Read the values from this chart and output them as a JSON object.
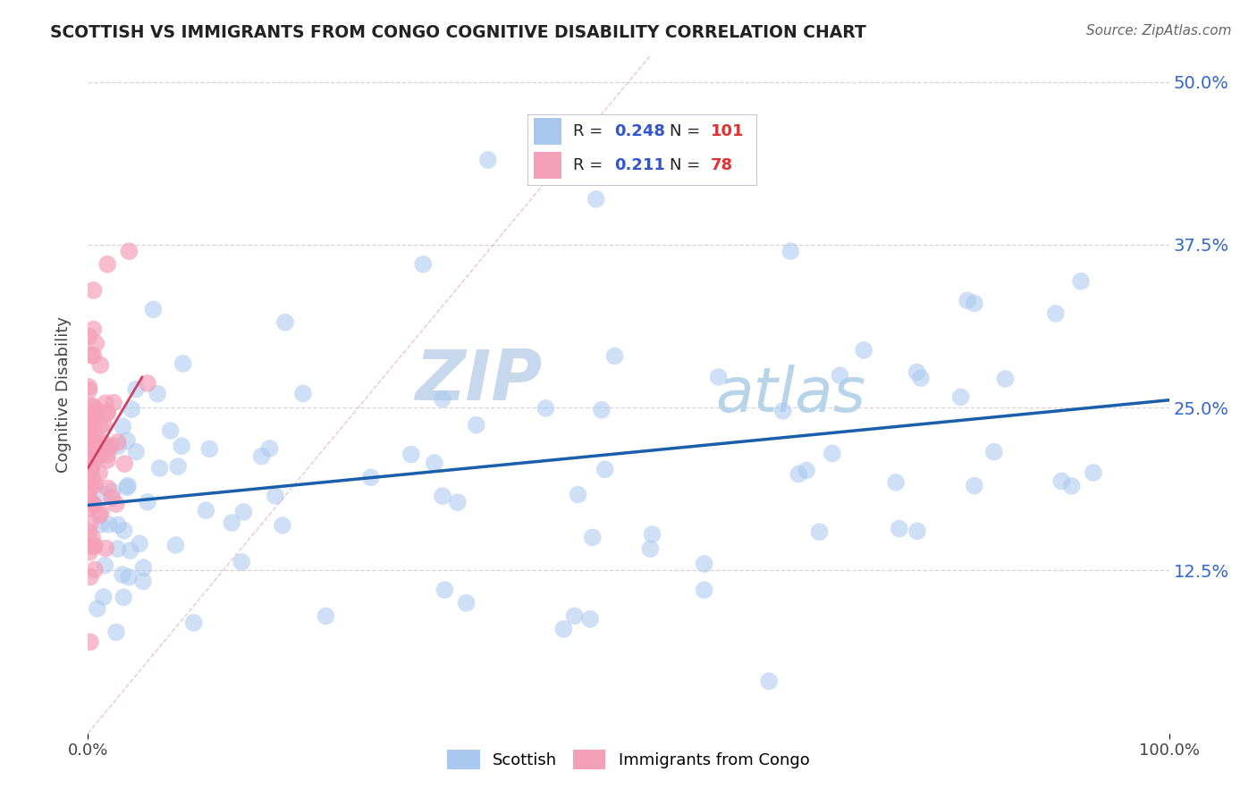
{
  "title": "SCOTTISH VS IMMIGRANTS FROM CONGO COGNITIVE DISABILITY CORRELATION CHART",
  "source_text": "Source: ZipAtlas.com",
  "ylabel": "Cognitive Disability",
  "xlim": [
    0.0,
    1.0
  ],
  "ylim": [
    0.0,
    0.52
  ],
  "x_tick_labels": [
    "0.0%",
    "100.0%"
  ],
  "y_ticks": [
    0.125,
    0.25,
    0.375,
    0.5
  ],
  "y_tick_labels": [
    "12.5%",
    "25.0%",
    "37.5%",
    "50.0%"
  ],
  "blue_color": "#A8C8F0",
  "pink_color": "#F4A0B8",
  "blue_line_color": "#1A5FAB",
  "pink_line_color": "#D04060",
  "diag_color": "#CCBBCC",
  "grid_color": "#CCCCCC",
  "background_color": "#FFFFFF",
  "watermark_zip": "ZIP",
  "watermark_atlas": "atlas",
  "watermark_color": "#E0E8F4",
  "right_tick_color": "#3366CC",
  "legend_box_color": "#F8F8FF",
  "r1_val": "0.248",
  "n1_val": "101",
  "r2_val": "0.211",
  "n2_val": "78"
}
